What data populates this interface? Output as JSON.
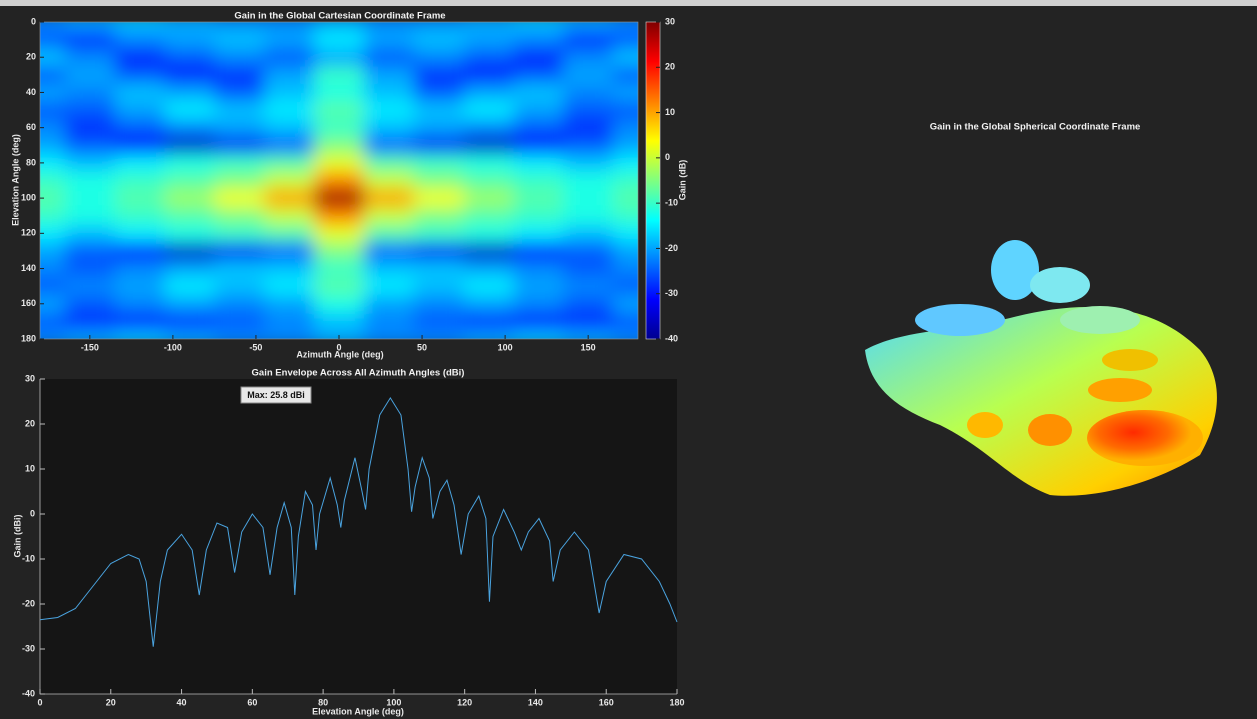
{
  "chart_data": [
    {
      "type": "heatmap",
      "title": "Gain in the Global Cartesian Coordinate Frame",
      "x_label": "Azimuth Angle (deg)",
      "y_label": "Elevation Angle (deg)",
      "colorbar_label": "Gain (dB)",
      "x": [
        -180,
        -150,
        -120,
        -90,
        -60,
        -30,
        0,
        30,
        60,
        90,
        120,
        150,
        180
      ],
      "y": [
        0,
        10,
        20,
        30,
        40,
        50,
        60,
        70,
        80,
        90,
        100,
        110,
        120,
        130,
        140,
        150,
        160,
        170,
        180
      ],
      "z": [
        [
          -22,
          -20,
          -18,
          -20,
          -22,
          -22,
          -20,
          -22,
          -22,
          -20,
          -18,
          -20,
          -22
        ],
        [
          -25,
          -28,
          -22,
          -20,
          -18,
          -20,
          -15,
          -20,
          -18,
          -20,
          -22,
          -28,
          -25
        ],
        [
          -18,
          -22,
          -30,
          -25,
          -22,
          -25,
          -20,
          -25,
          -22,
          -25,
          -30,
          -22,
          -18
        ],
        [
          -25,
          -20,
          -25,
          -30,
          -28,
          -20,
          -10,
          -20,
          -28,
          -30,
          -25,
          -20,
          -25
        ],
        [
          -20,
          -22,
          -18,
          -20,
          -25,
          -18,
          -12,
          -18,
          -25,
          -20,
          -18,
          -22,
          -20
        ],
        [
          -25,
          -25,
          -20,
          -15,
          -18,
          -15,
          -8,
          -15,
          -18,
          -15,
          -20,
          -25,
          -25
        ],
        [
          -22,
          -28,
          -25,
          -22,
          -20,
          -18,
          -10,
          -18,
          -20,
          -22,
          -25,
          -28,
          -22
        ],
        [
          -20,
          -25,
          -30,
          -35,
          -32,
          -25,
          -5,
          -25,
          -32,
          -35,
          -30,
          -25,
          -20
        ],
        [
          -15,
          -18,
          -15,
          -12,
          -10,
          -8,
          2,
          -8,
          -10,
          -12,
          -15,
          -18,
          -15
        ],
        [
          -10,
          -12,
          -10,
          -8,
          -5,
          0,
          12,
          0,
          -5,
          -8,
          -10,
          -12,
          -10
        ],
        [
          -8,
          -12,
          -8,
          -3,
          3,
          10,
          28,
          10,
          3,
          -3,
          -8,
          -12,
          -8
        ],
        [
          -10,
          -12,
          -10,
          -8,
          -5,
          0,
          12,
          0,
          -5,
          -8,
          -10,
          -12,
          -10
        ],
        [
          -15,
          -18,
          -15,
          -12,
          -10,
          -8,
          2,
          -8,
          -10,
          -12,
          -15,
          -18,
          -15
        ],
        [
          -20,
          -25,
          -30,
          -35,
          -32,
          -25,
          -5,
          -25,
          -32,
          -35,
          -30,
          -25,
          -20
        ],
        [
          -22,
          -25,
          -22,
          -20,
          -18,
          -18,
          -10,
          -18,
          -18,
          -20,
          -22,
          -25,
          -22
        ],
        [
          -25,
          -22,
          -20,
          -15,
          -18,
          -15,
          -8,
          -15,
          -18,
          -15,
          -20,
          -22,
          -25
        ],
        [
          -20,
          -25,
          -22,
          -20,
          -22,
          -20,
          -12,
          -20,
          -22,
          -20,
          -22,
          -25,
          -20
        ],
        [
          -25,
          -28,
          -30,
          -28,
          -25,
          -22,
          -18,
          -22,
          -25,
          -28,
          -30,
          -28,
          -25
        ],
        [
          -22,
          -20,
          -18,
          -20,
          -22,
          -22,
          -20,
          -22,
          -22,
          -20,
          -18,
          -20,
          -22
        ]
      ],
      "xlim": [
        -180,
        180
      ],
      "xticks": [
        -150,
        -100,
        -50,
        0,
        50,
        100,
        150
      ],
      "ylim": [
        0,
        180
      ],
      "yticks": [
        0,
        20,
        40,
        60,
        80,
        100,
        120,
        140,
        160,
        180
      ],
      "y_reversed": true,
      "clim": [
        -40,
        30
      ],
      "cticks": [
        -40,
        -30,
        -20,
        -10,
        0,
        10,
        20,
        30
      ],
      "colormap": "jet"
    },
    {
      "type": "line",
      "title": "Gain Envelope Across All Azimuth Angles (dBi)",
      "x_label": "Elevation Angle (deg)",
      "y_label": "Gain (dBi)",
      "annotation": "Max: 25.8 dBi",
      "color": "#4aa3df",
      "x": [
        0,
        5,
        10,
        15,
        20,
        25,
        28,
        30,
        32,
        34,
        36,
        40,
        43,
        45,
        47,
        50,
        53,
        55,
        57,
        60,
        63,
        65,
        67,
        69,
        71,
        72,
        73,
        75,
        77,
        78,
        79,
        82,
        84,
        85,
        86,
        89,
        91,
        92,
        93,
        96,
        99,
        102,
        104,
        105,
        106,
        108,
        110,
        111,
        113,
        115,
        117,
        119,
        121,
        124,
        126,
        127,
        128,
        131,
        134,
        136,
        138,
        141,
        144,
        145,
        147,
        151,
        155,
        158,
        160,
        165,
        170,
        175,
        178,
        180
      ],
      "values": [
        -23.5,
        -23,
        -21,
        -16,
        -11,
        -9,
        -10,
        -15,
        -29.5,
        -15,
        -8,
        -4.5,
        -8,
        -18,
        -8,
        -2,
        -3,
        -13,
        -4,
        0,
        -3,
        -13.5,
        -3,
        2.5,
        -3,
        -18,
        -5,
        5,
        2,
        -8,
        0,
        8,
        2,
        -3,
        3,
        12.5,
        5,
        1,
        10,
        22,
        25.8,
        22,
        10,
        0.5,
        6,
        12.5,
        8,
        -1,
        5,
        7.5,
        2,
        -9,
        0,
        4,
        -1,
        -19.5,
        -5,
        1,
        -4,
        -8,
        -4,
        -1,
        -6,
        -15,
        -8,
        -4,
        -8,
        -22,
        -15,
        -9,
        -10,
        -15,
        -20,
        -24
      ],
      "xlim": [
        0,
        180
      ],
      "xticks": [
        0,
        20,
        40,
        60,
        80,
        100,
        120,
        140,
        160,
        180
      ],
      "ylim": [
        -40,
        30
      ],
      "yticks": [
        -40,
        -30,
        -20,
        -10,
        0,
        10,
        20,
        30
      ]
    },
    {
      "type": "surface",
      "title": "Gain in the Global Spherical Coordinate Frame"
    }
  ]
}
